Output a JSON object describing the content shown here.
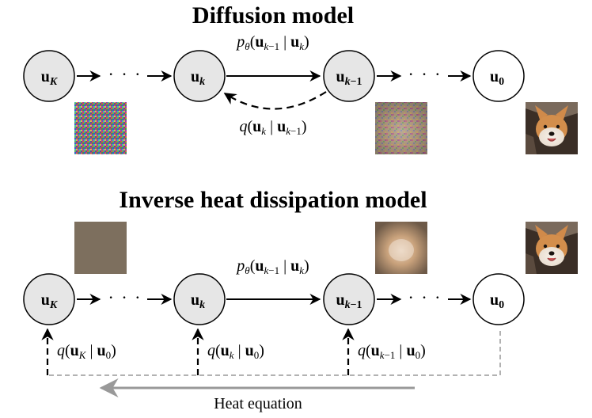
{
  "diffusion": {
    "title": "Diffusion model",
    "nodes": {
      "uK": {
        "base": "u",
        "sub": "K",
        "state": "latent"
      },
      "uk": {
        "base": "u",
        "sub": "k",
        "state": "latent"
      },
      "ukm1": {
        "base": "u",
        "sub": "k−1",
        "state": "latent"
      },
      "u0": {
        "base": "u",
        "sub": "0",
        "state": "data"
      }
    },
    "dots_left": "· · ·",
    "dots_right": "· · ·",
    "generative_label": "p_θ(u_{k−1} | u_k)",
    "forward_label": "q(u_k | u_{k−1})",
    "images": [
      "noise-image",
      "noisy-dog-image",
      "clean-dog-image"
    ]
  },
  "heat": {
    "title": "Inverse heat dissipation model",
    "nodes": {
      "uK": {
        "base": "u",
        "sub": "K",
        "state": "latent"
      },
      "uk": {
        "base": "u",
        "sub": "k",
        "state": "latent"
      },
      "ukm1": {
        "base": "u",
        "sub": "k−1",
        "state": "latent"
      },
      "u0": {
        "base": "u",
        "sub": "0",
        "state": "data"
      }
    },
    "dots_left": "· · ·",
    "dots_right": "· · ·",
    "generative_label": "p_θ(u_{k−1} | u_k)",
    "q_labels": [
      "q(u_K | u_0)",
      "q(u_k | u_0)",
      "q(u_{k−1} | u_0)"
    ],
    "caption": "Heat equation",
    "images": [
      "flat-blurred-image",
      "blurred-dog-image",
      "clean-dog-image"
    ]
  },
  "colors": {
    "latent_fill": "#e6e6e6",
    "data_fill": "#ffffff",
    "stroke": "#000000",
    "heat_arrow": "#999999",
    "flat_image": "#7d6f5e"
  }
}
